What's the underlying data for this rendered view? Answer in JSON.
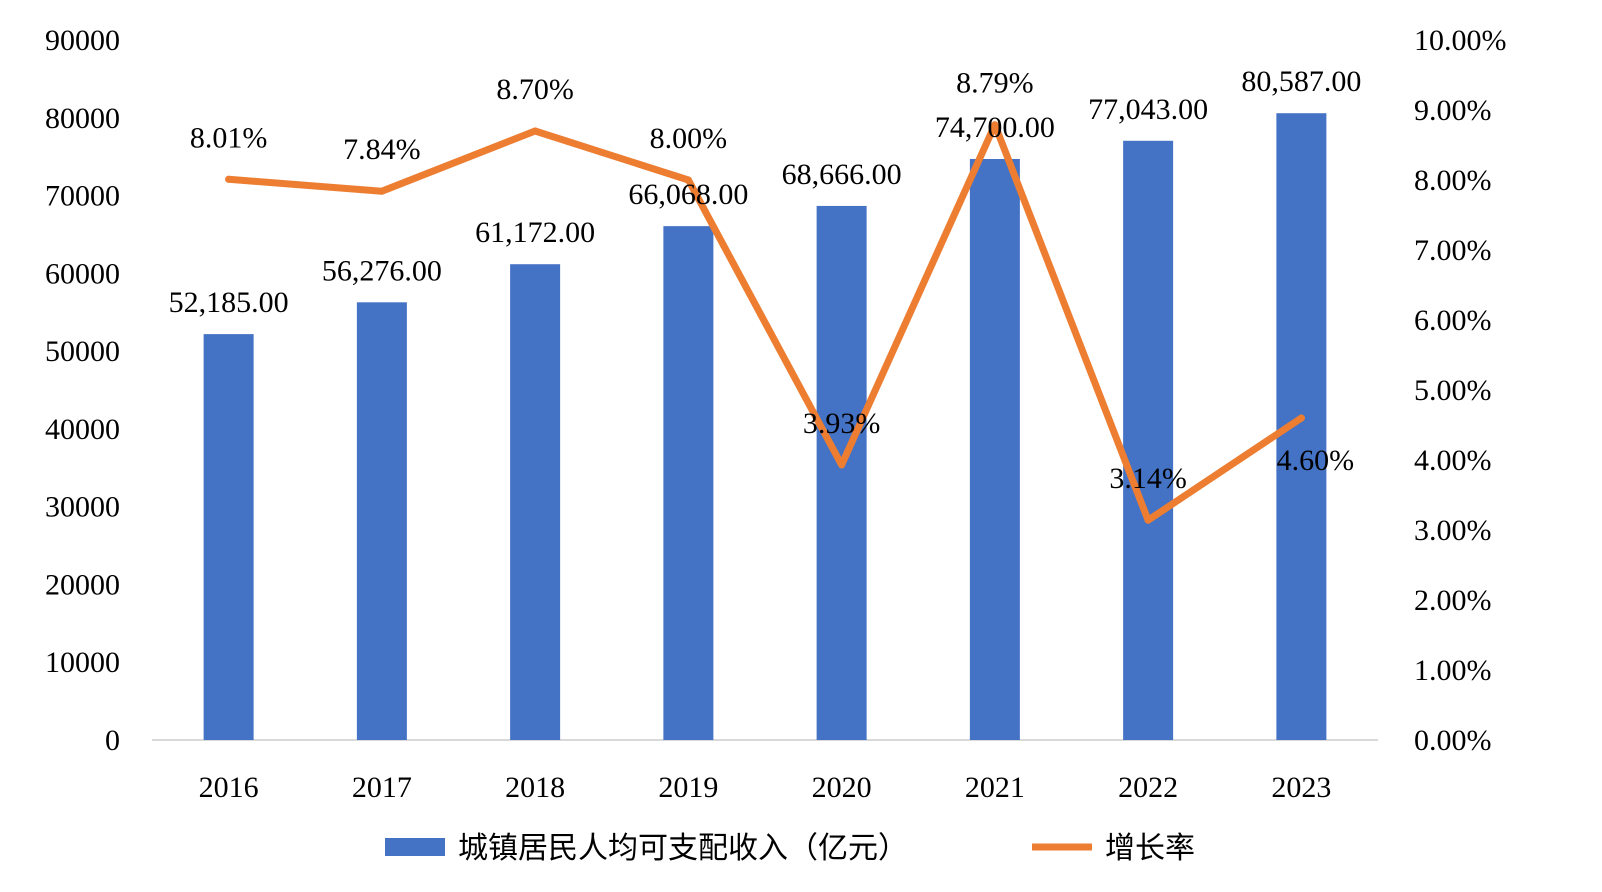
{
  "chart_data": {
    "type": "bar",
    "categories": [
      "2016",
      "2017",
      "2018",
      "2019",
      "2020",
      "2021",
      "2022",
      "2023"
    ],
    "series": [
      {
        "name": "城镇居民人均可支配收入（亿元）",
        "type": "bar",
        "axis": "left",
        "color": "#4472C4",
        "values": [
          52185,
          56276,
          61172,
          66068,
          68666,
          74700,
          77043,
          80587
        ],
        "labels": [
          "52,185.00",
          "56,276.00",
          "61,172.00",
          "66,068.00",
          "68,666.00",
          "74,700.00",
          "77,043.00",
          "80,587.00"
        ]
      },
      {
        "name": "增长率",
        "type": "line",
        "axis": "right",
        "color": "#ED7D31",
        "values": [
          8.01,
          7.84,
          8.7,
          8.0,
          3.93,
          8.79,
          3.14,
          4.6
        ],
        "labels": [
          "8.01%",
          "7.84%",
          "8.70%",
          "8.00%",
          "3.93%",
          "8.79%",
          "3.14%",
          "4.60%"
        ]
      }
    ],
    "y_left": {
      "ylim": [
        0,
        90000
      ],
      "ticks": [
        "0",
        "10000",
        "20000",
        "30000",
        "40000",
        "50000",
        "60000",
        "70000",
        "80000",
        "90000"
      ]
    },
    "y_right": {
      "ylim": [
        0,
        10
      ],
      "ticks": [
        "0.00%",
        "1.00%",
        "2.00%",
        "3.00%",
        "4.00%",
        "5.00%",
        "6.00%",
        "7.00%",
        "8.00%",
        "9.00%",
        "10.00%"
      ]
    },
    "grid": false,
    "legend_position": "bottom"
  }
}
